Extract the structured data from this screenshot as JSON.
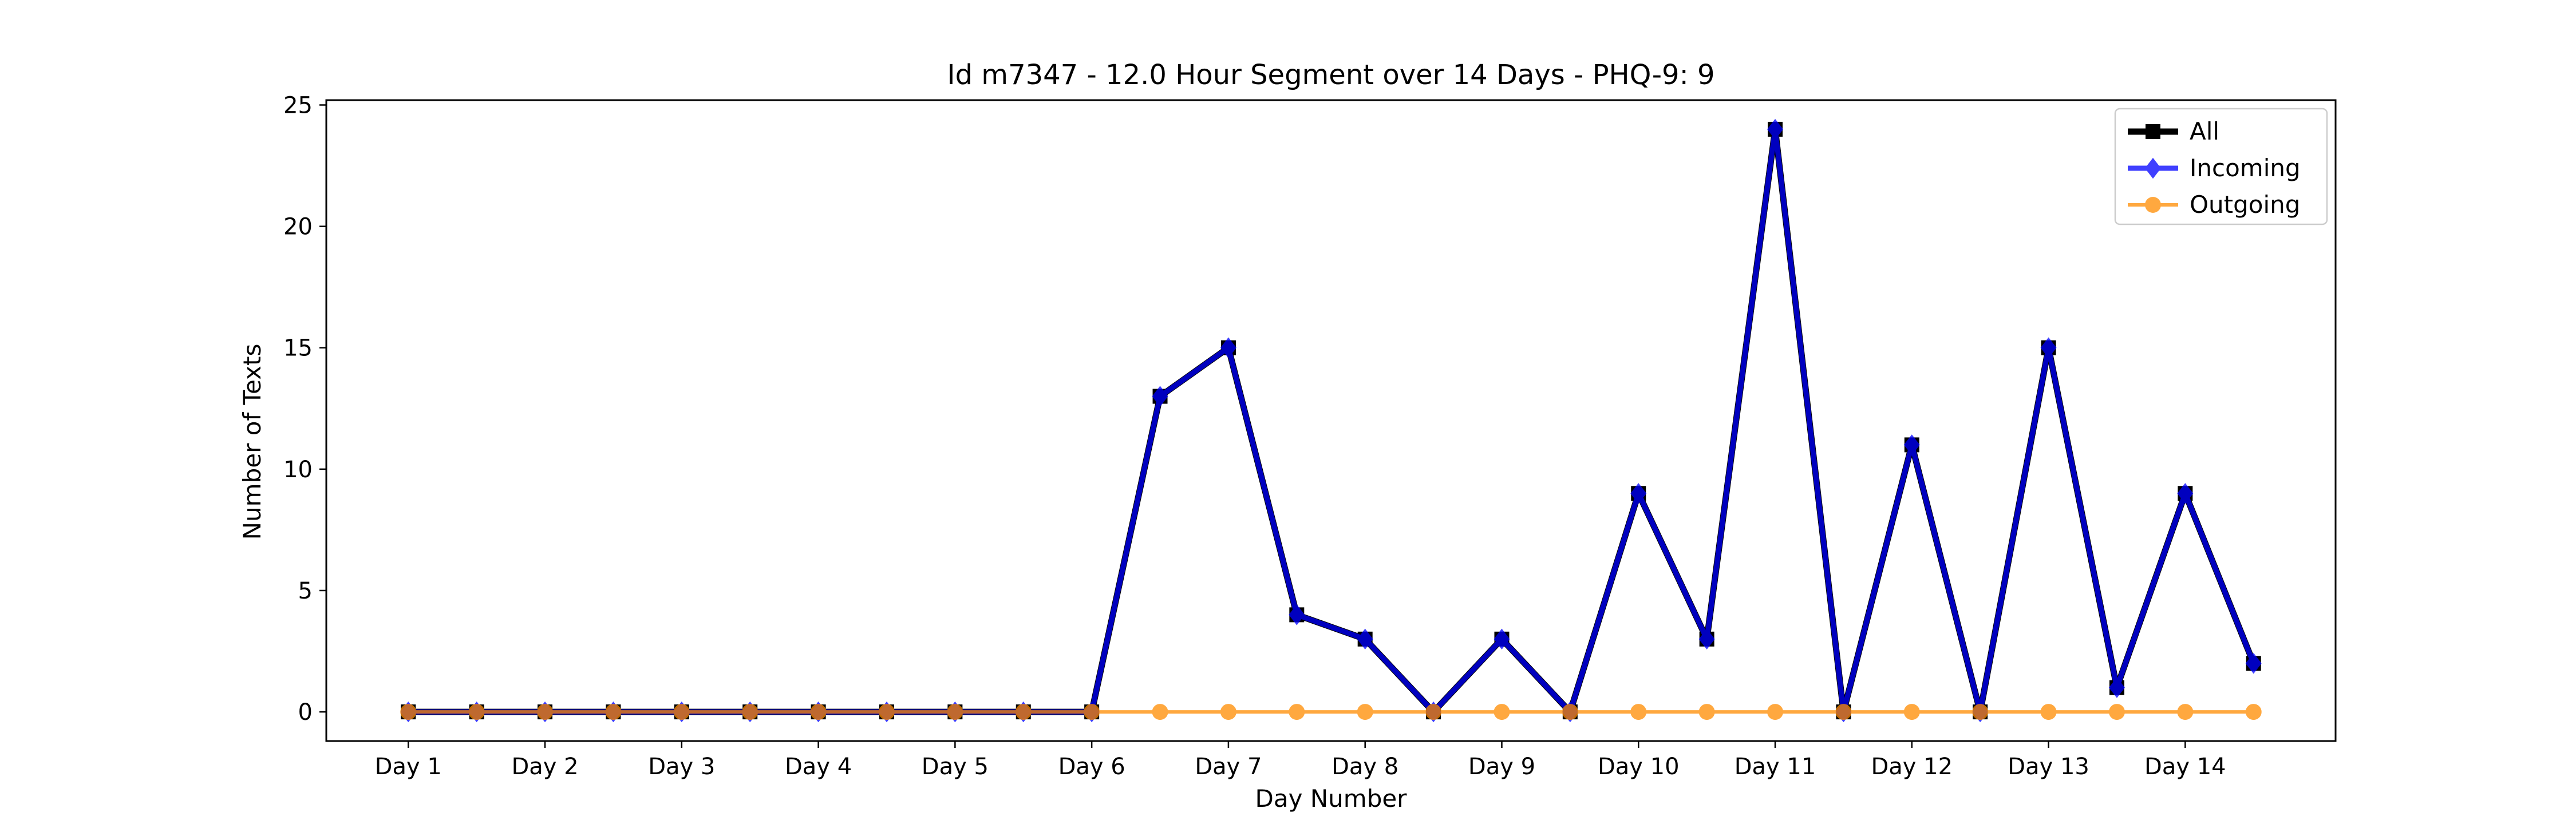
{
  "chart_data": {
    "type": "line",
    "title": "Id m7347 - 12.0 Hour Segment over 14 Days - PHQ-9: 9",
    "xlabel": "Day Number",
    "ylabel": "Number of Texts",
    "ylim": [
      -1.2,
      25.2
    ],
    "yticks": [
      0,
      5,
      10,
      15,
      20,
      25
    ],
    "xticks": [
      {
        "x": 1,
        "label": "Day 1"
      },
      {
        "x": 2,
        "label": "Day 2"
      },
      {
        "x": 3,
        "label": "Day 3"
      },
      {
        "x": 4,
        "label": "Day 4"
      },
      {
        "x": 5,
        "label": "Day 5"
      },
      {
        "x": 6,
        "label": "Day 6"
      },
      {
        "x": 7,
        "label": "Day 7"
      },
      {
        "x": 8,
        "label": "Day 8"
      },
      {
        "x": 9,
        "label": "Day 9"
      },
      {
        "x": 10,
        "label": "Day 10"
      },
      {
        "x": 11,
        "label": "Day 11"
      },
      {
        "x": 12,
        "label": "Day 12"
      },
      {
        "x": 13,
        "label": "Day 13"
      },
      {
        "x": 14,
        "label": "Day 14"
      }
    ],
    "x": [
      1,
      1.5,
      2,
      2.5,
      3,
      3.5,
      4,
      4.5,
      5,
      5.5,
      6,
      6.5,
      7,
      7.5,
      8,
      8.5,
      9,
      9.5,
      10,
      10.5,
      11,
      11.5,
      12,
      12.5,
      13,
      13.5,
      14,
      14.5
    ],
    "xlim": [
      0.4,
      15.1
    ],
    "grid": false,
    "legend_position": "top-right",
    "series": [
      {
        "name": "All",
        "color": "#000000",
        "marker": "square",
        "values": [
          0,
          0,
          0,
          0,
          0,
          0,
          0,
          0,
          0,
          0,
          0,
          13,
          15,
          4,
          3,
          0,
          3,
          0,
          9,
          3,
          24,
          0,
          11,
          0,
          15,
          1,
          9,
          2
        ]
      },
      {
        "name": "Incoming",
        "color": "#0000ff",
        "marker": "diamond",
        "values": [
          0,
          0,
          0,
          0,
          0,
          0,
          0,
          0,
          0,
          0,
          0,
          13,
          15,
          4,
          3,
          0,
          3,
          0,
          9,
          3,
          24,
          0,
          11,
          0,
          15,
          1,
          9,
          2
        ]
      },
      {
        "name": "Outgoing",
        "color": "#ff8c00",
        "marker": "circle",
        "values": [
          0,
          0,
          0,
          0,
          0,
          0,
          0,
          0,
          0,
          0,
          0,
          0,
          0,
          0,
          0,
          0,
          0,
          0,
          0,
          0,
          0,
          0,
          0,
          0,
          0,
          0,
          0,
          0
        ]
      }
    ]
  }
}
